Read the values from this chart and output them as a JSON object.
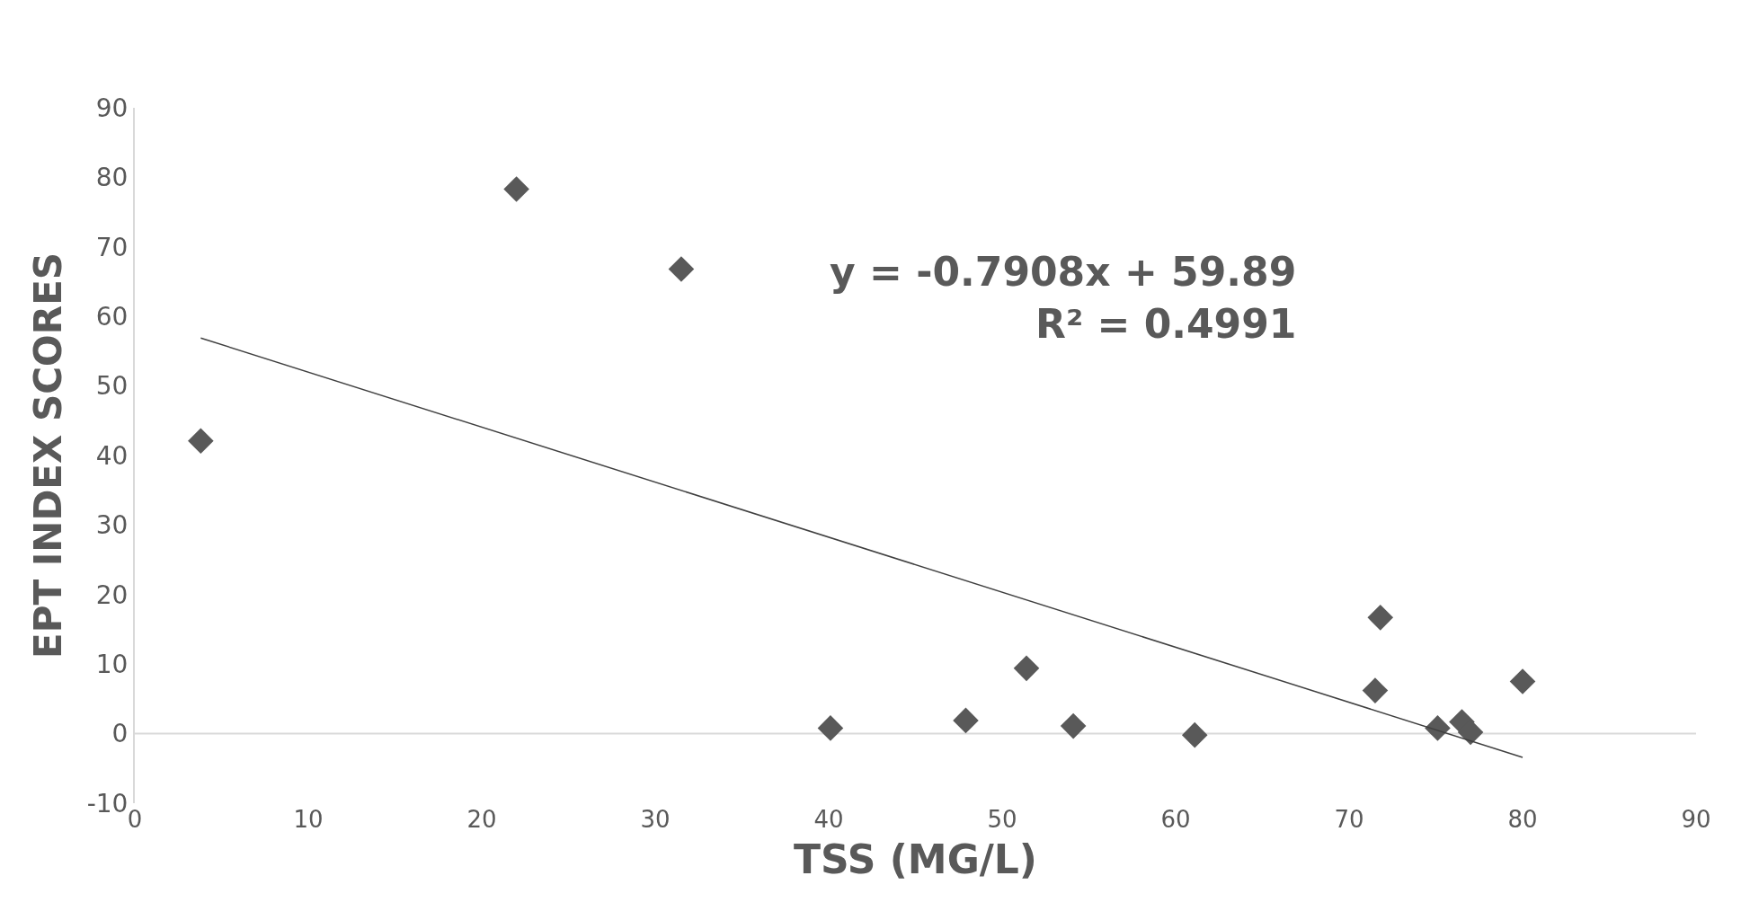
{
  "chart_data": {
    "type": "scatter",
    "xlabel": "TSS (MG/L)",
    "ylabel": "EPT INDEX SCORES",
    "series": [
      {
        "color": "#595959",
        "marker": "diamond",
        "x": [
          3.8,
          22.0,
          31.5,
          40.1,
          47.9,
          51.4,
          54.1,
          61.1,
          71.8,
          71.5,
          75.1,
          76.5,
          77.0,
          80.0
        ],
        "values": [
          42.1,
          78.3,
          66.8,
          0.8,
          1.9,
          9.4,
          1.1,
          -0.2,
          16.7,
          6.2,
          0.8,
          1.7,
          0.2,
          7.5
        ]
      },
      {
        "type": "line",
        "color": "#404040",
        "line_style": "solid",
        "x": [
          3.8,
          80.0
        ],
        "values": [
          56.9,
          -3.4
        ]
      }
    ],
    "annotations": [
      "y = -0.7908x + 59.89",
      "R² = 0.4991"
    ],
    "xlim": [
      0,
      90
    ],
    "xticks": [
      0,
      10,
      20,
      30,
      40,
      50,
      60,
      70,
      80,
      90
    ],
    "ylim": [
      -10,
      90
    ],
    "yticks": [
      -10,
      0,
      10,
      20,
      30,
      40,
      50,
      60,
      70,
      80,
      90
    ],
    "ref_lines": [
      {
        "axis": "y",
        "value": 0,
        "color": "#d9d9d9"
      }
    ],
    "grid": false
  }
}
